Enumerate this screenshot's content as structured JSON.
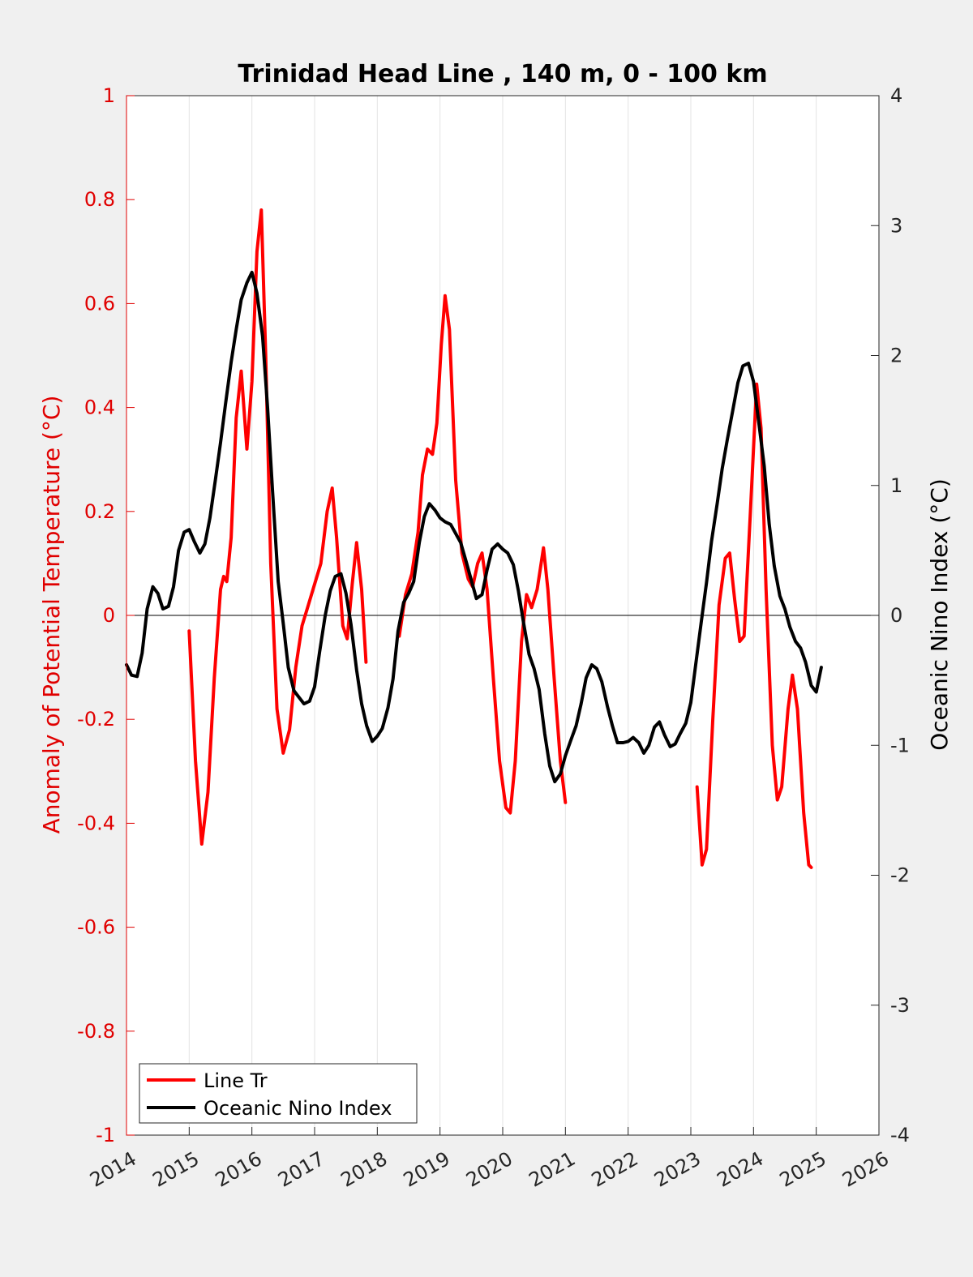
{
  "chart_data": {
    "type": "line",
    "title": "Trinidad Head Line , 140 m, 0 - 100 km",
    "xlabel": "",
    "ylabel_left": "Anomaly of Potential Temperature (°C)",
    "ylabel_right": "Oceanic Nino Index (°C)",
    "xlim": [
      2014,
      2026
    ],
    "ylim_left": [
      -1,
      1
    ],
    "ylim_right": [
      -4,
      4
    ],
    "x_ticks": [
      "2014",
      "2015",
      "2016",
      "2017",
      "2018",
      "2019",
      "2020",
      "2021",
      "2022",
      "2023",
      "2024",
      "2025",
      "2026"
    ],
    "y_ticks_left": [
      "1",
      "0.8",
      "0.6",
      "0.4",
      "0.2",
      "0",
      "-0.2",
      "-0.4",
      "-0.6",
      "-0.8",
      "-1"
    ],
    "y_ticks_right": [
      "4",
      "3",
      "2",
      "1",
      "0",
      "-1",
      "-2",
      "-3",
      "-4"
    ],
    "grid": "vertical",
    "legend_position": "bottom-left",
    "colors": {
      "line_tr": "#ff0000",
      "oni": "#000000",
      "left_axis": "#e00000",
      "right_axis": "#262626"
    },
    "series": [
      {
        "name": "Line Tr",
        "axis": "left",
        "segments": [
          [
            [
              2015.0,
              -0.03
            ],
            [
              2015.1,
              -0.28
            ],
            [
              2015.2,
              -0.44
            ],
            [
              2015.3,
              -0.34
            ],
            [
              2015.4,
              -0.12
            ],
            [
              2015.5,
              0.05
            ],
            [
              2015.55,
              0.075
            ],
            [
              2015.6,
              0.065
            ],
            [
              2015.67,
              0.15
            ],
            [
              2015.75,
              0.38
            ],
            [
              2015.83,
              0.47
            ],
            [
              2015.92,
              0.32
            ],
            [
              2016.0,
              0.45
            ],
            [
              2016.08,
              0.7
            ],
            [
              2016.15,
              0.78
            ],
            [
              2016.22,
              0.5
            ],
            [
              2016.3,
              0.1
            ],
            [
              2016.4,
              -0.18
            ],
            [
              2016.5,
              -0.265
            ],
            [
              2016.6,
              -0.22
            ],
            [
              2016.7,
              -0.1
            ],
            [
              2016.8,
              -0.02
            ],
            [
              2016.9,
              0.02
            ],
            [
              2017.0,
              0.06
            ],
            [
              2017.1,
              0.1
            ],
            [
              2017.2,
              0.2
            ],
            [
              2017.28,
              0.245
            ],
            [
              2017.35,
              0.15
            ],
            [
              2017.45,
              -0.02
            ],
            [
              2017.52,
              -0.045
            ],
            [
              2017.6,
              0.06
            ],
            [
              2017.67,
              0.14
            ],
            [
              2017.75,
              0.05
            ],
            [
              2017.82,
              -0.09
            ]
          ],
          [
            [
              2018.35,
              -0.04
            ],
            [
              2018.45,
              0.04
            ],
            [
              2018.55,
              0.08
            ],
            [
              2018.65,
              0.16
            ],
            [
              2018.72,
              0.27
            ],
            [
              2018.8,
              0.32
            ],
            [
              2018.88,
              0.31
            ],
            [
              2018.95,
              0.37
            ],
            [
              2019.02,
              0.52
            ],
            [
              2019.08,
              0.615
            ],
            [
              2019.15,
              0.55
            ],
            [
              2019.25,
              0.26
            ],
            [
              2019.35,
              0.12
            ],
            [
              2019.45,
              0.07
            ],
            [
              2019.52,
              0.055
            ],
            [
              2019.6,
              0.1
            ],
            [
              2019.67,
              0.12
            ],
            [
              2019.75,
              0.05
            ],
            [
              2019.85,
              -0.12
            ],
            [
              2019.95,
              -0.28
            ],
            [
              2020.05,
              -0.37
            ],
            [
              2020.12,
              -0.38
            ],
            [
              2020.2,
              -0.28
            ],
            [
              2020.3,
              -0.05
            ],
            [
              2020.38,
              0.04
            ],
            [
              2020.46,
              0.015
            ],
            [
              2020.55,
              0.05
            ],
            [
              2020.65,
              0.13
            ],
            [
              2020.72,
              0.05
            ],
            [
              2020.82,
              -0.12
            ],
            [
              2020.92,
              -0.28
            ],
            [
              2021.0,
              -0.36
            ]
          ],
          [
            [
              2023.1,
              -0.33
            ],
            [
              2023.18,
              -0.48
            ],
            [
              2023.25,
              -0.45
            ],
            [
              2023.35,
              -0.2
            ],
            [
              2023.45,
              0.02
            ],
            [
              2023.55,
              0.11
            ],
            [
              2023.62,
              0.12
            ],
            [
              2023.7,
              0.03
            ],
            [
              2023.78,
              -0.05
            ],
            [
              2023.85,
              -0.04
            ],
            [
              2023.95,
              0.2
            ],
            [
              2024.05,
              0.445
            ],
            [
              2024.12,
              0.36
            ],
            [
              2024.2,
              0.05
            ],
            [
              2024.3,
              -0.25
            ],
            [
              2024.38,
              -0.355
            ],
            [
              2024.45,
              -0.33
            ],
            [
              2024.55,
              -0.18
            ],
            [
              2024.62,
              -0.115
            ],
            [
              2024.7,
              -0.18
            ],
            [
              2024.8,
              -0.38
            ],
            [
              2024.88,
              -0.48
            ],
            [
              2024.92,
              -0.485
            ]
          ]
        ]
      },
      {
        "name": "Oceanic Nino Index",
        "axis": "right",
        "segments": [
          [
            [
              2014.0,
              -0.38
            ],
            [
              2014.08,
              -0.46
            ],
            [
              2014.17,
              -0.47
            ],
            [
              2014.25,
              -0.29
            ],
            [
              2014.33,
              0.05
            ],
            [
              2014.42,
              0.22
            ],
            [
              2014.5,
              0.17
            ],
            [
              2014.58,
              0.05
            ],
            [
              2014.67,
              0.07
            ],
            [
              2014.75,
              0.22
            ],
            [
              2014.83,
              0.5
            ],
            [
              2014.92,
              0.64
            ],
            [
              2015.0,
              0.66
            ],
            [
              2015.08,
              0.57
            ],
            [
              2015.17,
              0.48
            ],
            [
              2015.25,
              0.55
            ],
            [
              2015.33,
              0.75
            ],
            [
              2015.42,
              1.05
            ],
            [
              2015.5,
              1.33
            ],
            [
              2015.58,
              1.63
            ],
            [
              2015.67,
              1.95
            ],
            [
              2015.75,
              2.2
            ],
            [
              2015.83,
              2.43
            ],
            [
              2015.92,
              2.56
            ],
            [
              2016.0,
              2.64
            ],
            [
              2016.08,
              2.48
            ],
            [
              2016.17,
              2.15
            ],
            [
              2016.25,
              1.6
            ],
            [
              2016.33,
              0.95
            ],
            [
              2016.42,
              0.26
            ],
            [
              2016.5,
              -0.06
            ],
            [
              2016.58,
              -0.4
            ],
            [
              2016.67,
              -0.58
            ],
            [
              2016.75,
              -0.63
            ],
            [
              2016.83,
              -0.68
            ],
            [
              2016.92,
              -0.66
            ],
            [
              2017.0,
              -0.55
            ],
            [
              2017.08,
              -0.28
            ],
            [
              2017.17,
              0.0
            ],
            [
              2017.25,
              0.19
            ],
            [
              2017.33,
              0.3
            ],
            [
              2017.42,
              0.32
            ],
            [
              2017.5,
              0.17
            ],
            [
              2017.58,
              -0.07
            ],
            [
              2017.67,
              -0.42
            ],
            [
              2017.75,
              -0.68
            ],
            [
              2017.83,
              -0.85
            ],
            [
              2017.92,
              -0.97
            ],
            [
              2018.0,
              -0.93
            ],
            [
              2018.08,
              -0.87
            ],
            [
              2018.17,
              -0.71
            ],
            [
              2018.25,
              -0.49
            ],
            [
              2018.33,
              -0.12
            ],
            [
              2018.42,
              0.1
            ],
            [
              2018.5,
              0.17
            ],
            [
              2018.58,
              0.26
            ],
            [
              2018.67,
              0.56
            ],
            [
              2018.75,
              0.76
            ],
            [
              2018.83,
              0.86
            ],
            [
              2018.92,
              0.81
            ],
            [
              2019.0,
              0.75
            ],
            [
              2019.08,
              0.72
            ],
            [
              2019.17,
              0.7
            ],
            [
              2019.25,
              0.63
            ],
            [
              2019.33,
              0.56
            ],
            [
              2019.42,
              0.41
            ],
            [
              2019.5,
              0.27
            ],
            [
              2019.58,
              0.13
            ],
            [
              2019.67,
              0.16
            ],
            [
              2019.75,
              0.35
            ],
            [
              2019.83,
              0.51
            ],
            [
              2019.92,
              0.55
            ],
            [
              2020.0,
              0.51
            ],
            [
              2020.08,
              0.48
            ],
            [
              2020.17,
              0.39
            ],
            [
              2020.25,
              0.19
            ],
            [
              2020.33,
              -0.05
            ],
            [
              2020.42,
              -0.3
            ],
            [
              2020.5,
              -0.41
            ],
            [
              2020.58,
              -0.57
            ],
            [
              2020.67,
              -0.91
            ],
            [
              2020.75,
              -1.16
            ],
            [
              2020.83,
              -1.28
            ],
            [
              2020.92,
              -1.22
            ],
            [
              2021.0,
              -1.08
            ],
            [
              2021.08,
              -0.97
            ],
            [
              2021.17,
              -0.85
            ],
            [
              2021.25,
              -0.68
            ],
            [
              2021.33,
              -0.48
            ],
            [
              2021.42,
              -0.38
            ],
            [
              2021.5,
              -0.41
            ],
            [
              2021.58,
              -0.51
            ],
            [
              2021.67,
              -0.7
            ],
            [
              2021.75,
              -0.85
            ],
            [
              2021.83,
              -0.98
            ],
            [
              2021.92,
              -0.98
            ],
            [
              2022.0,
              -0.97
            ],
            [
              2022.08,
              -0.94
            ],
            [
              2022.17,
              -0.98
            ],
            [
              2022.25,
              -1.06
            ],
            [
              2022.33,
              -1.0
            ],
            [
              2022.42,
              -0.86
            ],
            [
              2022.5,
              -0.82
            ],
            [
              2022.58,
              -0.92
            ],
            [
              2022.67,
              -1.01
            ],
            [
              2022.75,
              -0.99
            ],
            [
              2022.83,
              -0.91
            ],
            [
              2022.92,
              -0.83
            ],
            [
              2023.0,
              -0.67
            ],
            [
              2023.08,
              -0.37
            ],
            [
              2023.17,
              -0.04
            ],
            [
              2023.25,
              0.25
            ],
            [
              2023.33,
              0.57
            ],
            [
              2023.42,
              0.86
            ],
            [
              2023.5,
              1.13
            ],
            [
              2023.58,
              1.35
            ],
            [
              2023.67,
              1.58
            ],
            [
              2023.75,
              1.79
            ],
            [
              2023.83,
              1.92
            ],
            [
              2023.92,
              1.94
            ],
            [
              2024.0,
              1.8
            ],
            [
              2024.08,
              1.5
            ],
            [
              2024.17,
              1.15
            ],
            [
              2024.25,
              0.7
            ],
            [
              2024.33,
              0.38
            ],
            [
              2024.42,
              0.15
            ],
            [
              2024.5,
              0.05
            ],
            [
              2024.58,
              -0.09
            ],
            [
              2024.67,
              -0.2
            ],
            [
              2024.75,
              -0.25
            ],
            [
              2024.83,
              -0.36
            ],
            [
              2024.92,
              -0.54
            ],
            [
              2025.0,
              -0.59
            ],
            [
              2025.08,
              -0.4
            ]
          ]
        ]
      }
    ],
    "legend": [
      "Line Tr",
      "Oceanic Nino Index"
    ]
  }
}
